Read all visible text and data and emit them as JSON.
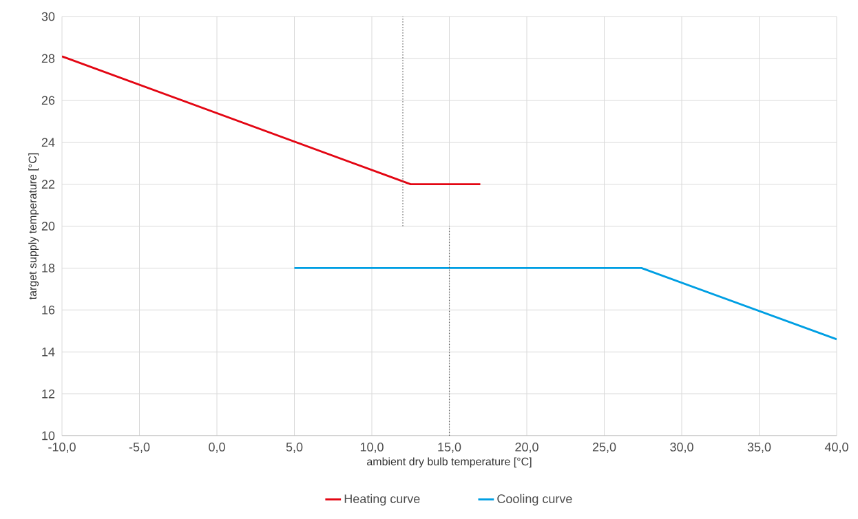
{
  "chart_data": {
    "type": "line",
    "xlabel": "ambient dry bulb temperature [°C]",
    "ylabel": "target supply temperature [°C]",
    "xlim": [
      -10,
      40
    ],
    "ylim": [
      10,
      30
    ],
    "xticks": [
      {
        "value": -10,
        "label": "-10,0"
      },
      {
        "value": -5,
        "label": "-5,0"
      },
      {
        "value": 0,
        "label": "0,0"
      },
      {
        "value": 5,
        "label": "5,0"
      },
      {
        "value": 10,
        "label": "10,0"
      },
      {
        "value": 15,
        "label": "15,0"
      },
      {
        "value": 20,
        "label": "20,0"
      },
      {
        "value": 25,
        "label": "25,0"
      },
      {
        "value": 30,
        "label": "30,0"
      },
      {
        "value": 35,
        "label": "35,0"
      },
      {
        "value": 40,
        "label": "40,0"
      }
    ],
    "yticks": [
      10,
      12,
      14,
      16,
      18,
      20,
      22,
      24,
      26,
      28,
      30
    ],
    "grid": true,
    "legend": "bottom",
    "marker": "none",
    "line_style": "solid",
    "series": [
      {
        "name": "Heating curve",
        "color": "#e30613",
        "x": [
          -10,
          12.5,
          17
        ],
        "values": [
          28.1,
          22,
          22
        ]
      },
      {
        "name": "Cooling curve",
        "color": "#009fe3",
        "x": [
          5,
          27.4,
          40
        ],
        "values": [
          18,
          18,
          14.6
        ]
      },
      {
        "color": "#555555",
        "line_style": "dotted",
        "x": [
          12,
          12
        ],
        "values": [
          20,
          30
        ]
      },
      {
        "color": "#555555",
        "line_style": "dotted",
        "x": [
          15,
          15
        ],
        "values": [
          10,
          20
        ]
      }
    ]
  }
}
